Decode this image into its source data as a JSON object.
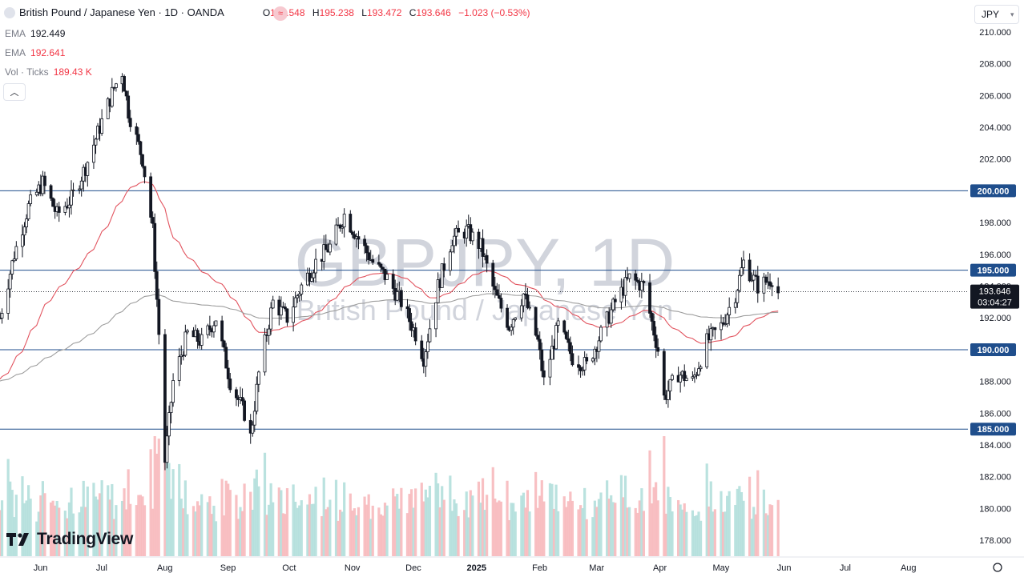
{
  "header": {
    "title": "British Pound / Japanese Yen · 1D · OANDA",
    "open_label": "O",
    "open": "194.548",
    "high_label": "H",
    "high": "195.238",
    "low_label": "L",
    "low": "193.472",
    "close_label": "C",
    "close": "193.646",
    "change": "−1.023 (−0.53%)"
  },
  "indicators": [
    {
      "name": "EMA",
      "value": "192.449",
      "color": "#131722"
    },
    {
      "name": "EMA",
      "value": "192.641",
      "color": "#f23645"
    },
    {
      "name": "Vol · Ticks",
      "value": "189.43 K",
      "color": "#f23645"
    }
  ],
  "currency_selector": "JPY",
  "watermark": {
    "symbol": "GBPJPY, 1D",
    "name": "British Pound / Japanese Yen"
  },
  "branding": "TradingView",
  "colors": {
    "up": "#131722",
    "down": "#131722",
    "ema_fast": "#e2545f",
    "ema_slow": "#9e9e9e",
    "hline": "#1f4e8c",
    "label_bg": "#1f4e8c",
    "vol_up": "#b2dfdb",
    "vol_down": "#f7b9bd"
  },
  "chart_data": {
    "type": "candlestick",
    "symbol": "GBPJPY",
    "timeframe": "1D",
    "ylim": [
      177,
      210.5
    ],
    "y_ticks": [
      178,
      180,
      182,
      184,
      186,
      188,
      190,
      192,
      194,
      196,
      198,
      202,
      204,
      206,
      208,
      210
    ],
    "x_ticks": [
      "Jun",
      "Jul",
      "Aug",
      "Sep",
      "Oct",
      "Nov",
      "Dec",
      "2025",
      "Feb",
      "Mar",
      "Apr",
      "May",
      "Jun",
      "Jul",
      "Aug"
    ],
    "horizontal_levels": [
      {
        "value": 200.0,
        "label": "200.000"
      },
      {
        "value": 195.0,
        "label": "195.000"
      },
      {
        "value": 190.0,
        "label": "190.000"
      },
      {
        "value": 185.0,
        "label": "185.000"
      }
    ],
    "last_price": {
      "value": 193.646,
      "label": "193.646",
      "countdown": "03:04:27"
    },
    "price_path": [
      [
        "2024-05-16",
        192.0
      ],
      [
        "2024-05-23",
        196.0
      ],
      [
        "2024-05-30",
        199.0
      ],
      [
        "2024-06-06",
        200.5
      ],
      [
        "2024-06-13",
        198.5
      ],
      [
        "2024-06-20",
        199.5
      ],
      [
        "2024-06-27",
        201.5
      ],
      [
        "2024-07-04",
        204.0
      ],
      [
        "2024-07-11",
        206.5
      ],
      [
        "2024-07-15",
        207.5
      ],
      [
        "2024-07-18",
        205.0
      ],
      [
        "2024-07-25",
        202.0
      ],
      [
        "2024-07-30",
        197.5
      ],
      [
        "2024-08-02",
        191.0
      ],
      [
        "2024-08-05",
        183.0
      ],
      [
        "2024-08-09",
        188.0
      ],
      [
        "2024-08-16",
        191.0
      ],
      [
        "2024-08-23",
        190.5
      ],
      [
        "2024-08-30",
        192.0
      ],
      [
        "2024-09-06",
        188.0
      ],
      [
        "2024-09-13",
        186.0
      ],
      [
        "2024-09-16",
        184.5
      ],
      [
        "2024-09-20",
        188.5
      ],
      [
        "2024-09-27",
        193.0
      ],
      [
        "2024-10-04",
        192.0
      ],
      [
        "2024-10-11",
        194.0
      ],
      [
        "2024-10-18",
        195.5
      ],
      [
        "2024-10-25",
        196.5
      ],
      [
        "2024-11-01",
        198.5
      ],
      [
        "2024-11-08",
        197.0
      ],
      [
        "2024-11-15",
        195.5
      ],
      [
        "2024-11-22",
        194.5
      ],
      [
        "2024-11-29",
        193.0
      ],
      [
        "2024-12-06",
        191.0
      ],
      [
        "2024-12-10",
        189.5
      ],
      [
        "2024-12-17",
        194.0
      ],
      [
        "2024-12-24",
        197.0
      ],
      [
        "2024-12-31",
        197.5
      ],
      [
        "2025-01-07",
        196.5
      ],
      [
        "2025-01-14",
        193.5
      ],
      [
        "2025-01-21",
        191.5
      ],
      [
        "2025-01-28",
        193.5
      ],
      [
        "2025-02-04",
        190.5
      ],
      [
        "2025-02-07",
        188.0
      ],
      [
        "2025-02-14",
        191.5
      ],
      [
        "2025-02-21",
        189.5
      ],
      [
        "2025-02-28",
        189.0
      ],
      [
        "2025-03-07",
        191.0
      ],
      [
        "2025-03-14",
        193.0
      ],
      [
        "2025-03-21",
        194.5
      ],
      [
        "2025-03-28",
        194.0
      ],
      [
        "2025-04-04",
        190.0
      ],
      [
        "2025-04-07",
        187.0
      ],
      [
        "2025-04-14",
        188.5
      ],
      [
        "2025-04-21",
        188.0
      ],
      [
        "2025-04-28",
        190.5
      ],
      [
        "2025-05-05",
        191.5
      ],
      [
        "2025-05-12",
        193.5
      ],
      [
        "2025-05-16",
        195.5
      ],
      [
        "2025-05-23",
        194.0
      ],
      [
        "2025-05-30",
        194.5
      ],
      [
        "2025-06-02",
        193.6
      ]
    ]
  }
}
